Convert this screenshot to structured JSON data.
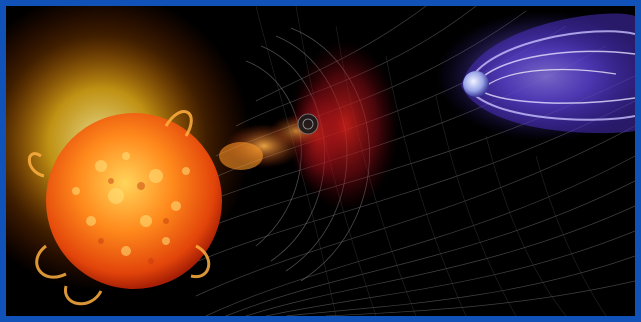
{
  "image": {
    "subject": "sun-earth-space-weather",
    "elements": [
      "sun",
      "solar-flare-prominences",
      "coronal-mass-ejection",
      "solar-wind-field-lines",
      "earth",
      "magnetosphere"
    ],
    "colors": {
      "frame": "#1152b8",
      "space": "#000000",
      "sun_core": "#ff8a1c",
      "sun_glow": "#ffd21f",
      "cme_red": "#c4121a",
      "magnetosphere": "#5b3fd6",
      "grid": "#7a7a7a"
    }
  }
}
